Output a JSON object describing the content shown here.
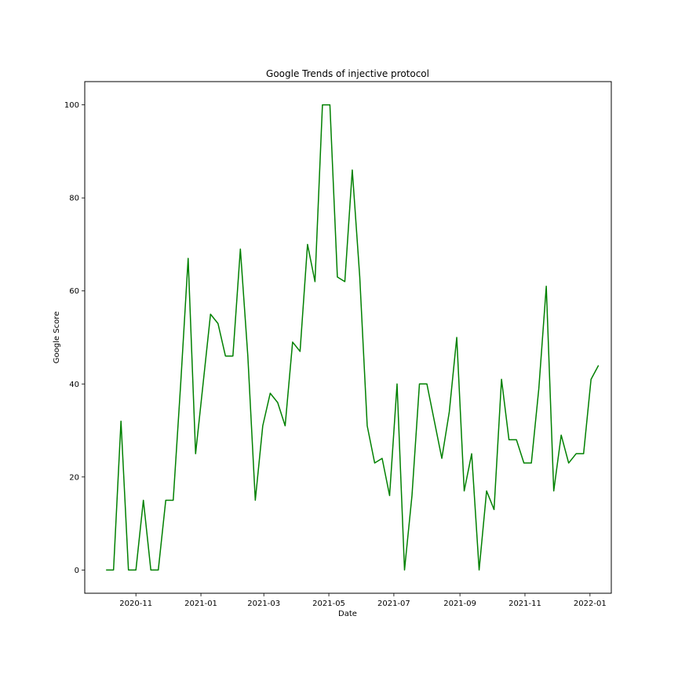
{
  "chart_data": {
    "type": "line",
    "title": "Google Trends of injective protocol",
    "xlabel": "Date",
    "ylabel": "Google Score",
    "x_tick_labels": [
      "2020-11",
      "2021-01",
      "2021-03",
      "2021-05",
      "2021-07",
      "2021-09",
      "2021-11",
      "2022-01"
    ],
    "x_tick_dates": [
      "2020-11-01",
      "2021-01-01",
      "2021-03-01",
      "2021-05-01",
      "2021-07-01",
      "2021-09-01",
      "2021-11-01",
      "2022-01-01"
    ],
    "y_ticks": [
      0,
      20,
      40,
      60,
      80,
      100
    ],
    "xlim": [
      "2020-09-14",
      "2022-01-21"
    ],
    "ylim": [
      -5,
      105
    ],
    "grid": false,
    "series": [
      {
        "color": "#008000",
        "x": [
          "2020-10-04",
          "2020-10-11",
          "2020-10-18",
          "2020-10-25",
          "2020-11-01",
          "2020-11-08",
          "2020-11-15",
          "2020-11-22",
          "2020-11-29",
          "2020-12-06",
          "2020-12-13",
          "2020-12-20",
          "2020-12-27",
          "2021-01-03",
          "2021-01-10",
          "2021-01-17",
          "2021-01-24",
          "2021-01-31",
          "2021-02-07",
          "2021-02-14",
          "2021-02-21",
          "2021-02-28",
          "2021-03-07",
          "2021-03-14",
          "2021-03-21",
          "2021-03-28",
          "2021-04-04",
          "2021-04-11",
          "2021-04-18",
          "2021-04-25",
          "2021-05-02",
          "2021-05-09",
          "2021-05-16",
          "2021-05-23",
          "2021-05-30",
          "2021-06-06",
          "2021-06-13",
          "2021-06-20",
          "2021-06-27",
          "2021-07-04",
          "2021-07-11",
          "2021-07-18",
          "2021-07-25",
          "2021-08-01",
          "2021-08-08",
          "2021-08-15",
          "2021-08-22",
          "2021-08-29",
          "2021-09-05",
          "2021-09-12",
          "2021-09-19",
          "2021-09-26",
          "2021-10-03",
          "2021-10-10",
          "2021-10-17",
          "2021-10-24",
          "2021-10-31",
          "2021-11-07",
          "2021-11-14",
          "2021-11-21",
          "2021-11-28",
          "2021-12-05",
          "2021-12-12",
          "2021-12-19",
          "2021-12-26",
          "2022-01-02",
          "2022-01-09"
        ],
        "y": [
          0,
          0,
          32,
          0,
          0,
          15,
          0,
          0,
          15,
          15,
          40,
          67,
          25,
          40,
          55,
          53,
          46,
          46,
          69,
          46,
          15,
          31,
          38,
          36,
          31,
          49,
          47,
          70,
          62,
          100,
          100,
          63,
          62,
          86,
          63,
          31,
          23,
          24,
          16,
          40,
          0,
          16,
          40,
          40,
          32,
          24,
          34,
          50,
          17,
          25,
          0,
          17,
          13,
          41,
          28,
          28,
          23,
          23,
          39,
          61,
          17,
          29,
          23,
          25,
          25,
          41,
          44
        ]
      }
    ]
  }
}
